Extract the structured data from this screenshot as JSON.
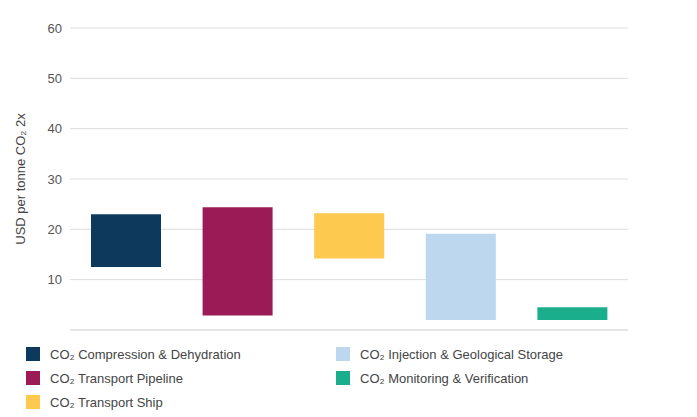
{
  "chart_data": {
    "type": "bar",
    "y_label": "USD per tonne CO₂ 2x",
    "categories": [
      "CO₂ Compression & Dehydration",
      "CO₂ Transport Pipeline",
      "CO₂ Transport Ship",
      "CO₂ Injection & Geological Storage",
      "CO₂ Monitoring & Verification"
    ],
    "low": [
      12.5,
      2.9,
      14.2,
      2,
      2
    ],
    "high": [
      23,
      24.4,
      23.2,
      19.1,
      4.5
    ],
    "colors": [
      "#0d3a5c",
      "#9b1b56",
      "#fdc94e",
      "#bcd7ee",
      "#1aae8c"
    ],
    "ylim": [
      0,
      60
    ],
    "yticks": [
      10,
      20,
      30,
      40,
      50,
      60
    ],
    "grid": true,
    "tick_labels": "y",
    "legend": "bottom"
  }
}
